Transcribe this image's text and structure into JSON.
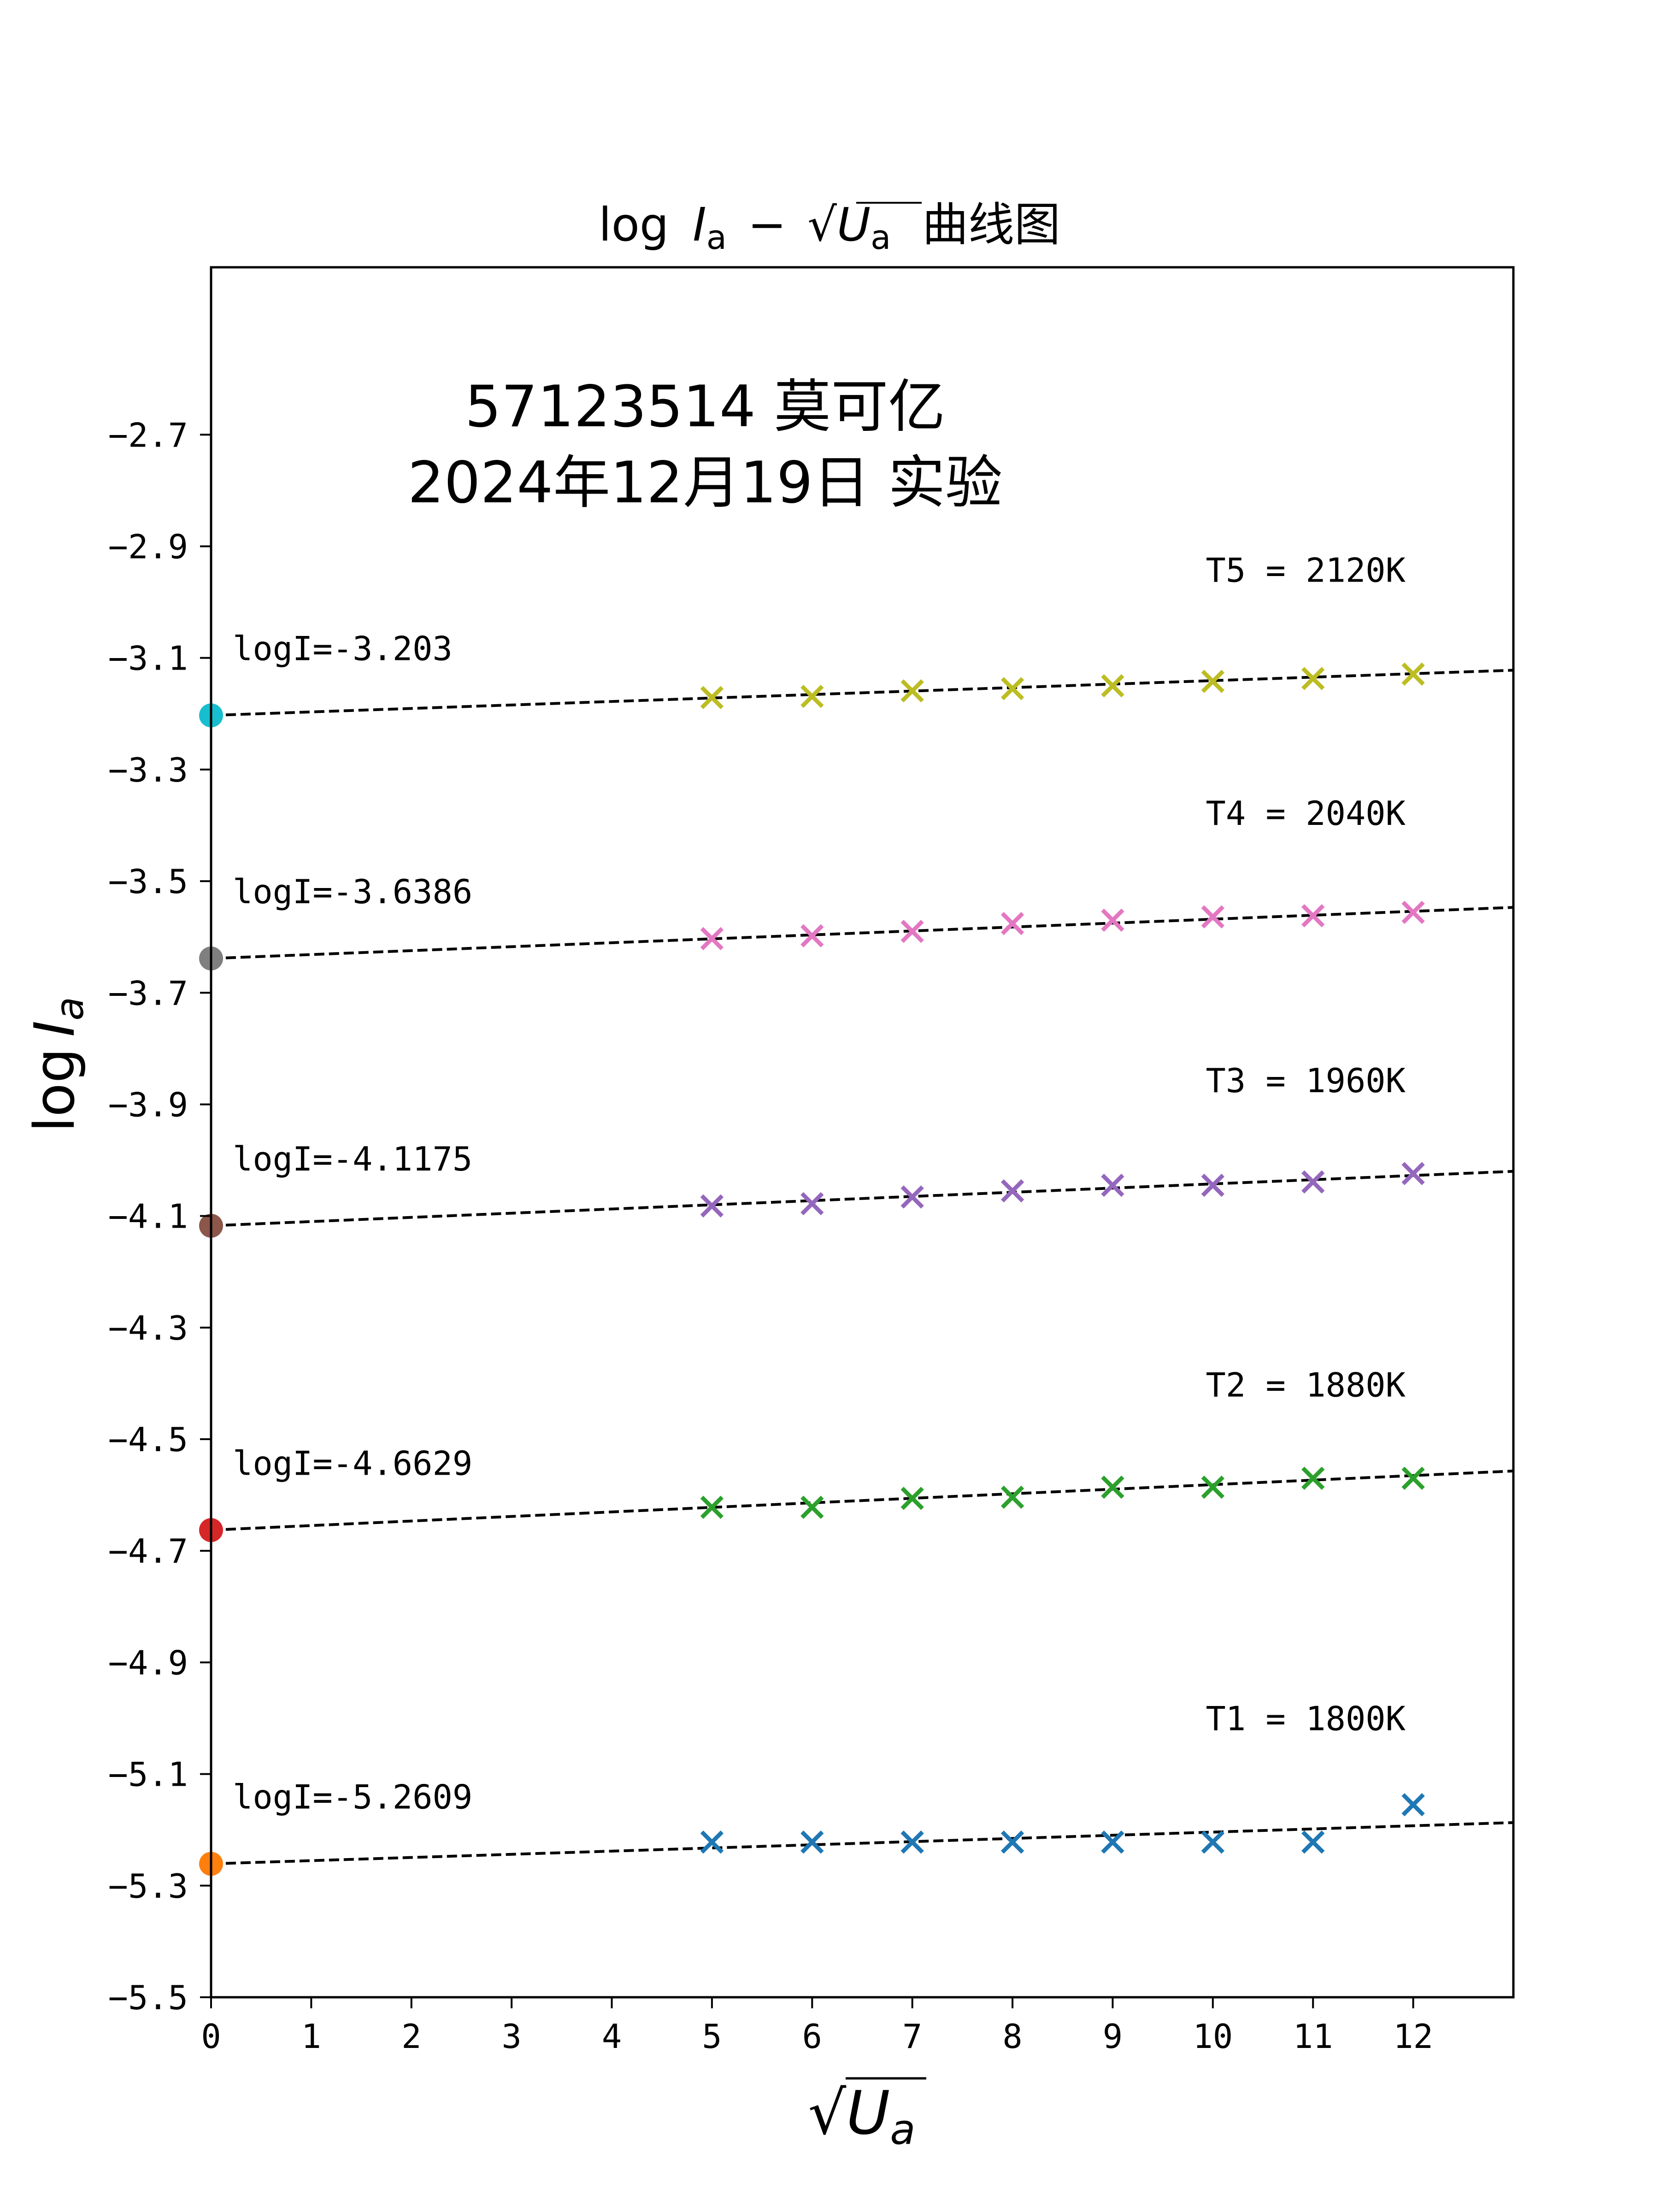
{
  "chart_data": {
    "type": "scatter",
    "title": "log I_a − √U_a 曲线图",
    "title_parts": {
      "log": "log",
      "I": "I",
      "I_sub": "a",
      "minus": "−",
      "U": "U",
      "U_sub": "a",
      "suffix": "曲线图"
    },
    "annotation": {
      "line1": "57123514 莫可亿",
      "line2": "2024年12月19日 实验"
    },
    "xlabel": "√U_a",
    "xlabel_parts": {
      "U": "U",
      "sub": "a"
    },
    "ylabel": "log I_a",
    "ylabel_parts": {
      "log": "log",
      "I": "I",
      "sub": "a"
    },
    "xlim": [
      0,
      13
    ],
    "ylim": [
      -5.5,
      -2.4
    ],
    "xticks": [
      0,
      1,
      2,
      3,
      4,
      5,
      6,
      7,
      8,
      9,
      10,
      11,
      12
    ],
    "xtick_labels": [
      "0",
      "1",
      "2",
      "3",
      "4",
      "5",
      "6",
      "7",
      "8",
      "9",
      "10",
      "11",
      "12"
    ],
    "yticks": [
      -2.7,
      -2.9,
      -3.1,
      -3.3,
      -3.5,
      -3.7,
      -3.9,
      -4.1,
      -4.3,
      -4.5,
      -4.7,
      -4.9,
      -5.1,
      -5.3,
      -5.5
    ],
    "ytick_labels": [
      "−2.7",
      "−2.9",
      "−3.1",
      "−3.3",
      "−3.5",
      "−3.7",
      "−3.9",
      "−4.1",
      "−4.3",
      "−4.5",
      "−4.7",
      "−4.9",
      "−5.1",
      "−5.3",
      "−5.5"
    ],
    "grid": false,
    "x": [
      5,
      6,
      7,
      8,
      9,
      10,
      11,
      12
    ],
    "series": [
      {
        "name": "T1 = 1800K",
        "color": "#1f77b4",
        "intercept_color": "#ff7f0e",
        "intercept": -5.2609,
        "intercept_label": "logI=-5.2609",
        "values": [
          -5.222,
          -5.222,
          -5.222,
          -5.222,
          -5.222,
          -5.222,
          -5.222,
          -5.155
        ],
        "fit_end": -5.187
      },
      {
        "name": "T2 = 1880K",
        "color": "#2ca02c",
        "intercept_color": "#d62728",
        "intercept": -4.6629,
        "intercept_label": "logI=-4.6629",
        "values": [
          -4.622,
          -4.622,
          -4.606,
          -4.604,
          -4.586,
          -4.586,
          -4.57,
          -4.57
        ],
        "fit_end": -4.557
      },
      {
        "name": "T3 = 1960K",
        "color": "#9467bd",
        "intercept_color": "#8c564b",
        "intercept": -4.1175,
        "intercept_label": "logI=-4.1175",
        "values": [
          -4.082,
          -4.078,
          -4.066,
          -4.055,
          -4.045,
          -4.045,
          -4.039,
          -4.024
        ],
        "fit_end": -4.02
      },
      {
        "name": "T4 = 2040K",
        "color": "#e377c2",
        "intercept_color": "#7f7f7f",
        "intercept": -3.6386,
        "intercept_label": "logI=-3.6386",
        "values": [
          -3.603,
          -3.598,
          -3.59,
          -3.576,
          -3.57,
          -3.564,
          -3.562,
          -3.556
        ],
        "fit_end": -3.547
      },
      {
        "name": "T5 = 2120K",
        "color": "#bcbd22",
        "intercept_color": "#17becf",
        "intercept": -3.203,
        "intercept_label": "logI=-3.203",
        "values": [
          -3.171,
          -3.169,
          -3.159,
          -3.155,
          -3.15,
          -3.142,
          -3.137,
          -3.129
        ],
        "fit_end": -3.122
      }
    ]
  }
}
